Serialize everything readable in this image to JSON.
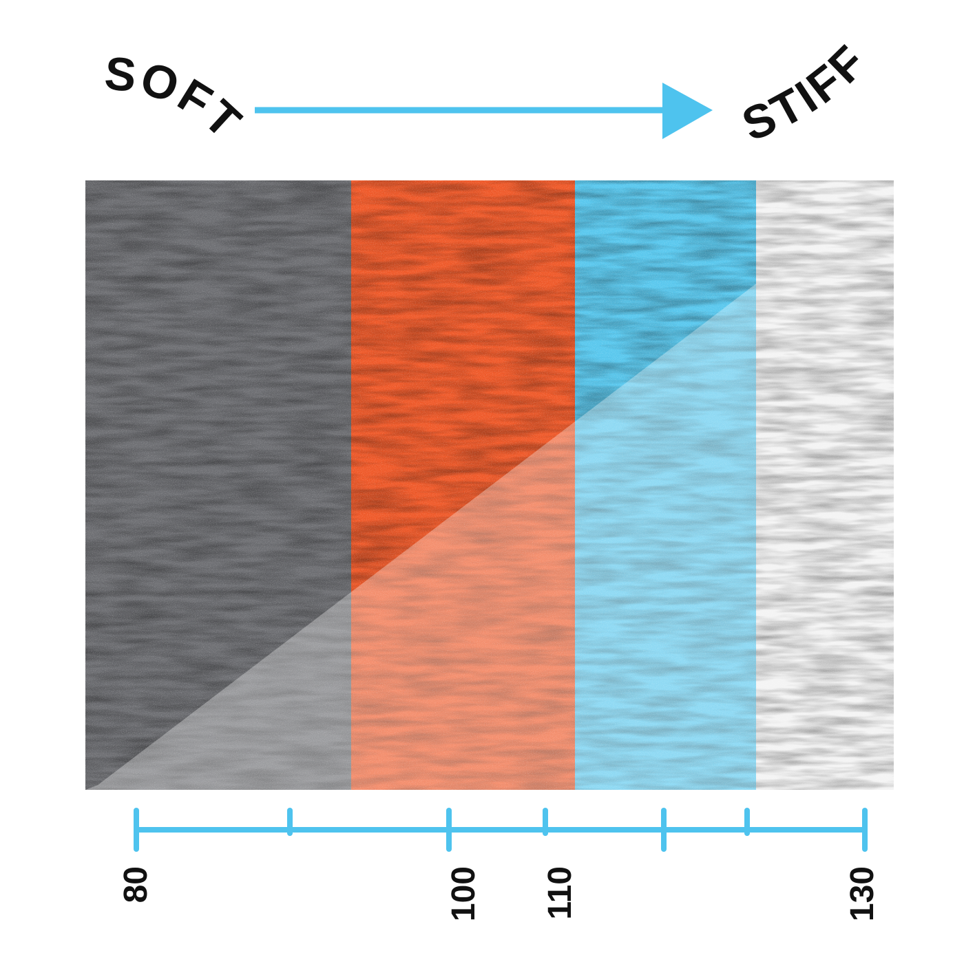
{
  "labels": {
    "soft": "SOFT",
    "stiff": "STIFF"
  },
  "colors": {
    "arrow": "#4ec3ee",
    "axis": "#4ec3ee",
    "band_gray": "#6e6f73",
    "band_orange": "#ef5a2a",
    "band_blue": "#5ac8ee",
    "band_white": "#f2f2f2",
    "text": "#111111"
  },
  "scale": {
    "tick_labels": [
      "80",
      "100",
      "110",
      "130"
    ]
  }
}
